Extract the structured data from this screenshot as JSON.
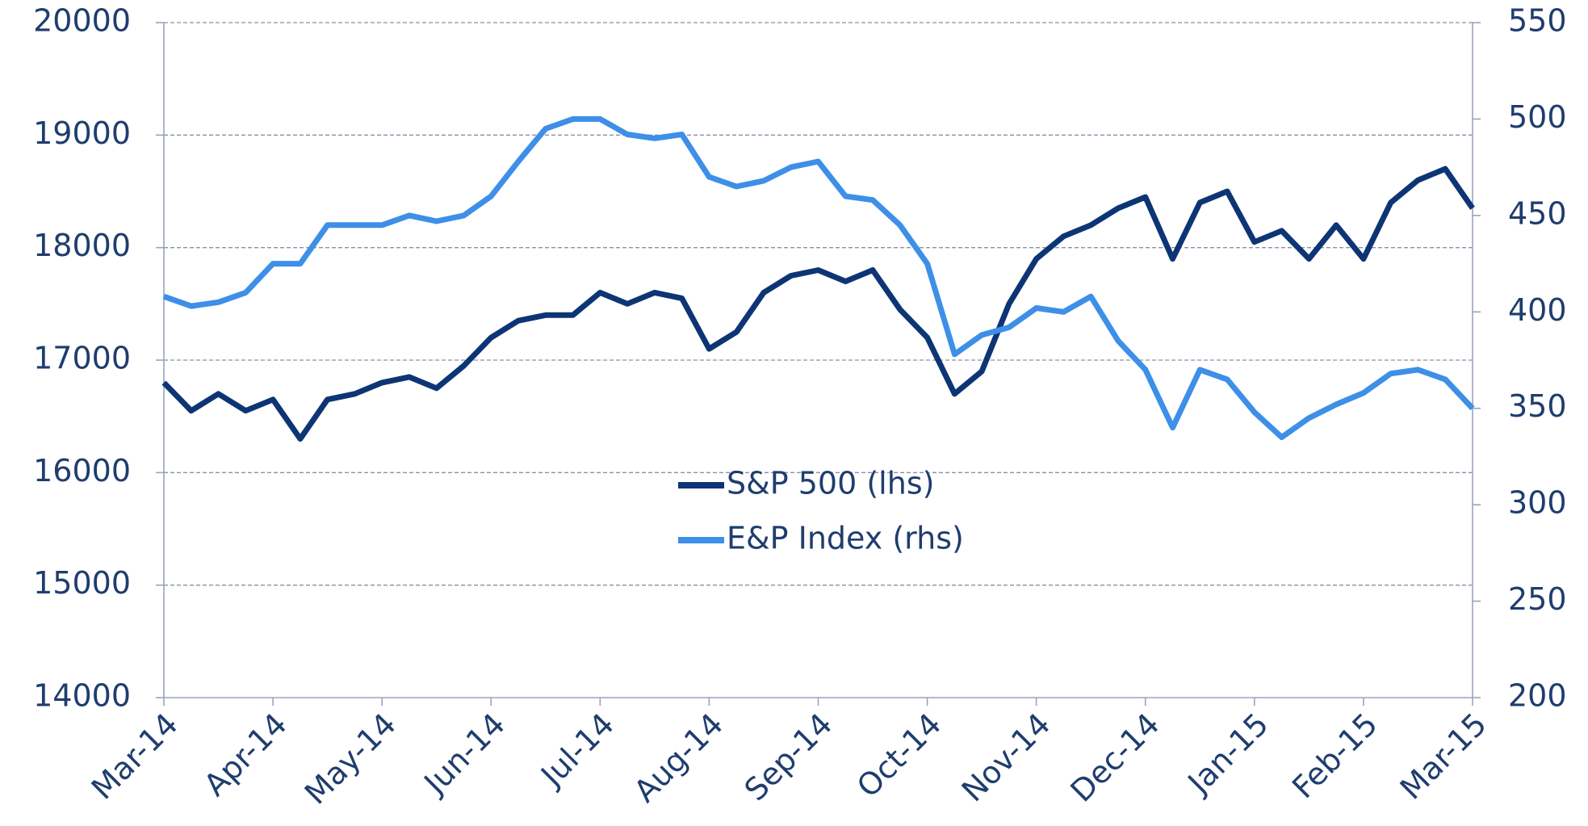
{
  "chart_data": {
    "type": "line",
    "categories": [
      "Mar-14",
      null,
      null,
      null,
      "Apr-14",
      null,
      null,
      null,
      "May-14",
      null,
      null,
      null,
      "Jun-14",
      null,
      null,
      null,
      "Jul-14",
      null,
      null,
      null,
      "Aug-14",
      null,
      null,
      null,
      "Sep-14",
      null,
      null,
      null,
      "Oct-14",
      null,
      null,
      null,
      "Nov-14",
      null,
      null,
      null,
      "Dec-14",
      null,
      null,
      null,
      "Jan-15",
      null,
      null,
      null,
      "Feb-15",
      null,
      null,
      null,
      "Mar-15"
    ],
    "series": [
      {
        "name": "S&P 500 (lhs)",
        "color": "#0d3575",
        "axis": "y",
        "values": [
          16800,
          16550,
          16700,
          16550,
          16650,
          16300,
          16650,
          16700,
          16800,
          16850,
          16750,
          16950,
          17200,
          17350,
          17400,
          17400,
          17600,
          17500,
          17600,
          17550,
          17100,
          17250,
          17600,
          17750,
          17800,
          17700,
          17800,
          17450,
          17200,
          16700,
          16900,
          17500,
          17900,
          18100,
          18200,
          18350,
          18450,
          17900,
          18400,
          18500,
          18050,
          18150,
          17900,
          18200,
          17900,
          18400,
          18600,
          18700,
          18350
        ]
      },
      {
        "name": "E&P Index (rhs)",
        "color": "#3d8fe8",
        "axis": "y2",
        "values": [
          408,
          403,
          405,
          410,
          425,
          425,
          445,
          445,
          445,
          450,
          447,
          450,
          460,
          478,
          495,
          500,
          500,
          492,
          490,
          492,
          470,
          465,
          468,
          475,
          478,
          460,
          458,
          445,
          425,
          378,
          388,
          392,
          402,
          400,
          408,
          385,
          370,
          340,
          370,
          365,
          348,
          335,
          345,
          352,
          358,
          368,
          370,
          365,
          350
        ]
      }
    ],
    "ylim": [
      14000,
      20000
    ],
    "yticks": [
      14000,
      15000,
      16000,
      17000,
      18000,
      19000,
      20000
    ],
    "y2lim": [
      200,
      550
    ],
    "y2ticks": [
      200,
      250,
      300,
      350,
      400,
      450,
      500,
      550
    ],
    "grid": true
  }
}
